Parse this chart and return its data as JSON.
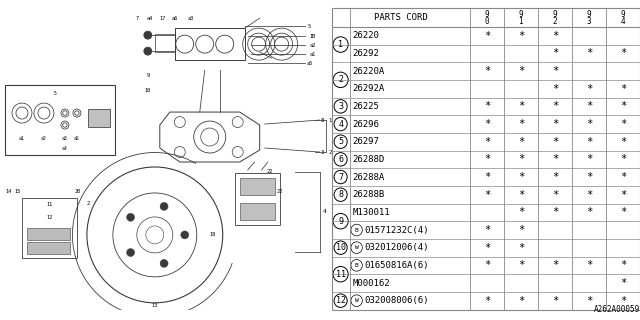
{
  "bg_color": "#ffffff",
  "rows": [
    {
      "item": "1",
      "parts": [
        "26220",
        "26292"
      ],
      "marks": [
        [
          "*",
          "*",
          "*",
          "",
          ""
        ],
        [
          "",
          "",
          "*",
          "*",
          "*"
        ]
      ]
    },
    {
      "item": "2",
      "parts": [
        "26220A",
        "26292A"
      ],
      "marks": [
        [
          "*",
          "*",
          "*",
          "",
          ""
        ],
        [
          "",
          "",
          "*",
          "*",
          "*"
        ]
      ]
    },
    {
      "item": "3",
      "parts": [
        "26225"
      ],
      "marks": [
        [
          "*",
          "*",
          "*",
          "*",
          "*"
        ]
      ]
    },
    {
      "item": "4",
      "parts": [
        "26296"
      ],
      "marks": [
        [
          "*",
          "*",
          "*",
          "*",
          "*"
        ]
      ]
    },
    {
      "item": "5",
      "parts": [
        "26297"
      ],
      "marks": [
        [
          "*",
          "*",
          "*",
          "*",
          "*"
        ]
      ]
    },
    {
      "item": "6",
      "parts": [
        "26288D"
      ],
      "marks": [
        [
          "*",
          "*",
          "*",
          "*",
          "*"
        ]
      ]
    },
    {
      "item": "7",
      "parts": [
        "26288A"
      ],
      "marks": [
        [
          "*",
          "*",
          "*",
          "*",
          "*"
        ]
      ]
    },
    {
      "item": "8",
      "parts": [
        "26288B"
      ],
      "marks": [
        [
          "*",
          "*",
          "*",
          "*",
          "*"
        ]
      ]
    },
    {
      "item": "9",
      "parts": [
        "M130011",
        "B01571232C(4)"
      ],
      "marks": [
        [
          "",
          "*",
          "*",
          "*",
          "*"
        ],
        [
          "*",
          "*",
          "",
          "",
          ""
        ]
      ]
    },
    {
      "item": "10",
      "parts": [
        "W032012006(4)"
      ],
      "marks": [
        [
          "*",
          "*",
          "",
          "",
          ""
        ]
      ]
    },
    {
      "item": "11",
      "parts": [
        "B01650816A(6)",
        "M000162"
      ],
      "marks": [
        [
          "*",
          "*",
          "*",
          "*",
          "*"
        ],
        [
          "",
          "",
          "",
          "",
          "*"
        ]
      ]
    },
    {
      "item": "12",
      "parts": [
        "W032008006(6)"
      ],
      "marks": [
        [
          "*",
          "*",
          "*",
          "*",
          "*"
        ]
      ]
    }
  ],
  "part_prefix_types": {
    "B01571232C(4)": "B",
    "W032012006(4)": "W",
    "B01650816A(6)": "B",
    "W032008006(6)": "W"
  },
  "catalog_id": "A262A00059",
  "table_line_color": "#888888",
  "font_size": 6.5,
  "header_font_size": 6.5
}
